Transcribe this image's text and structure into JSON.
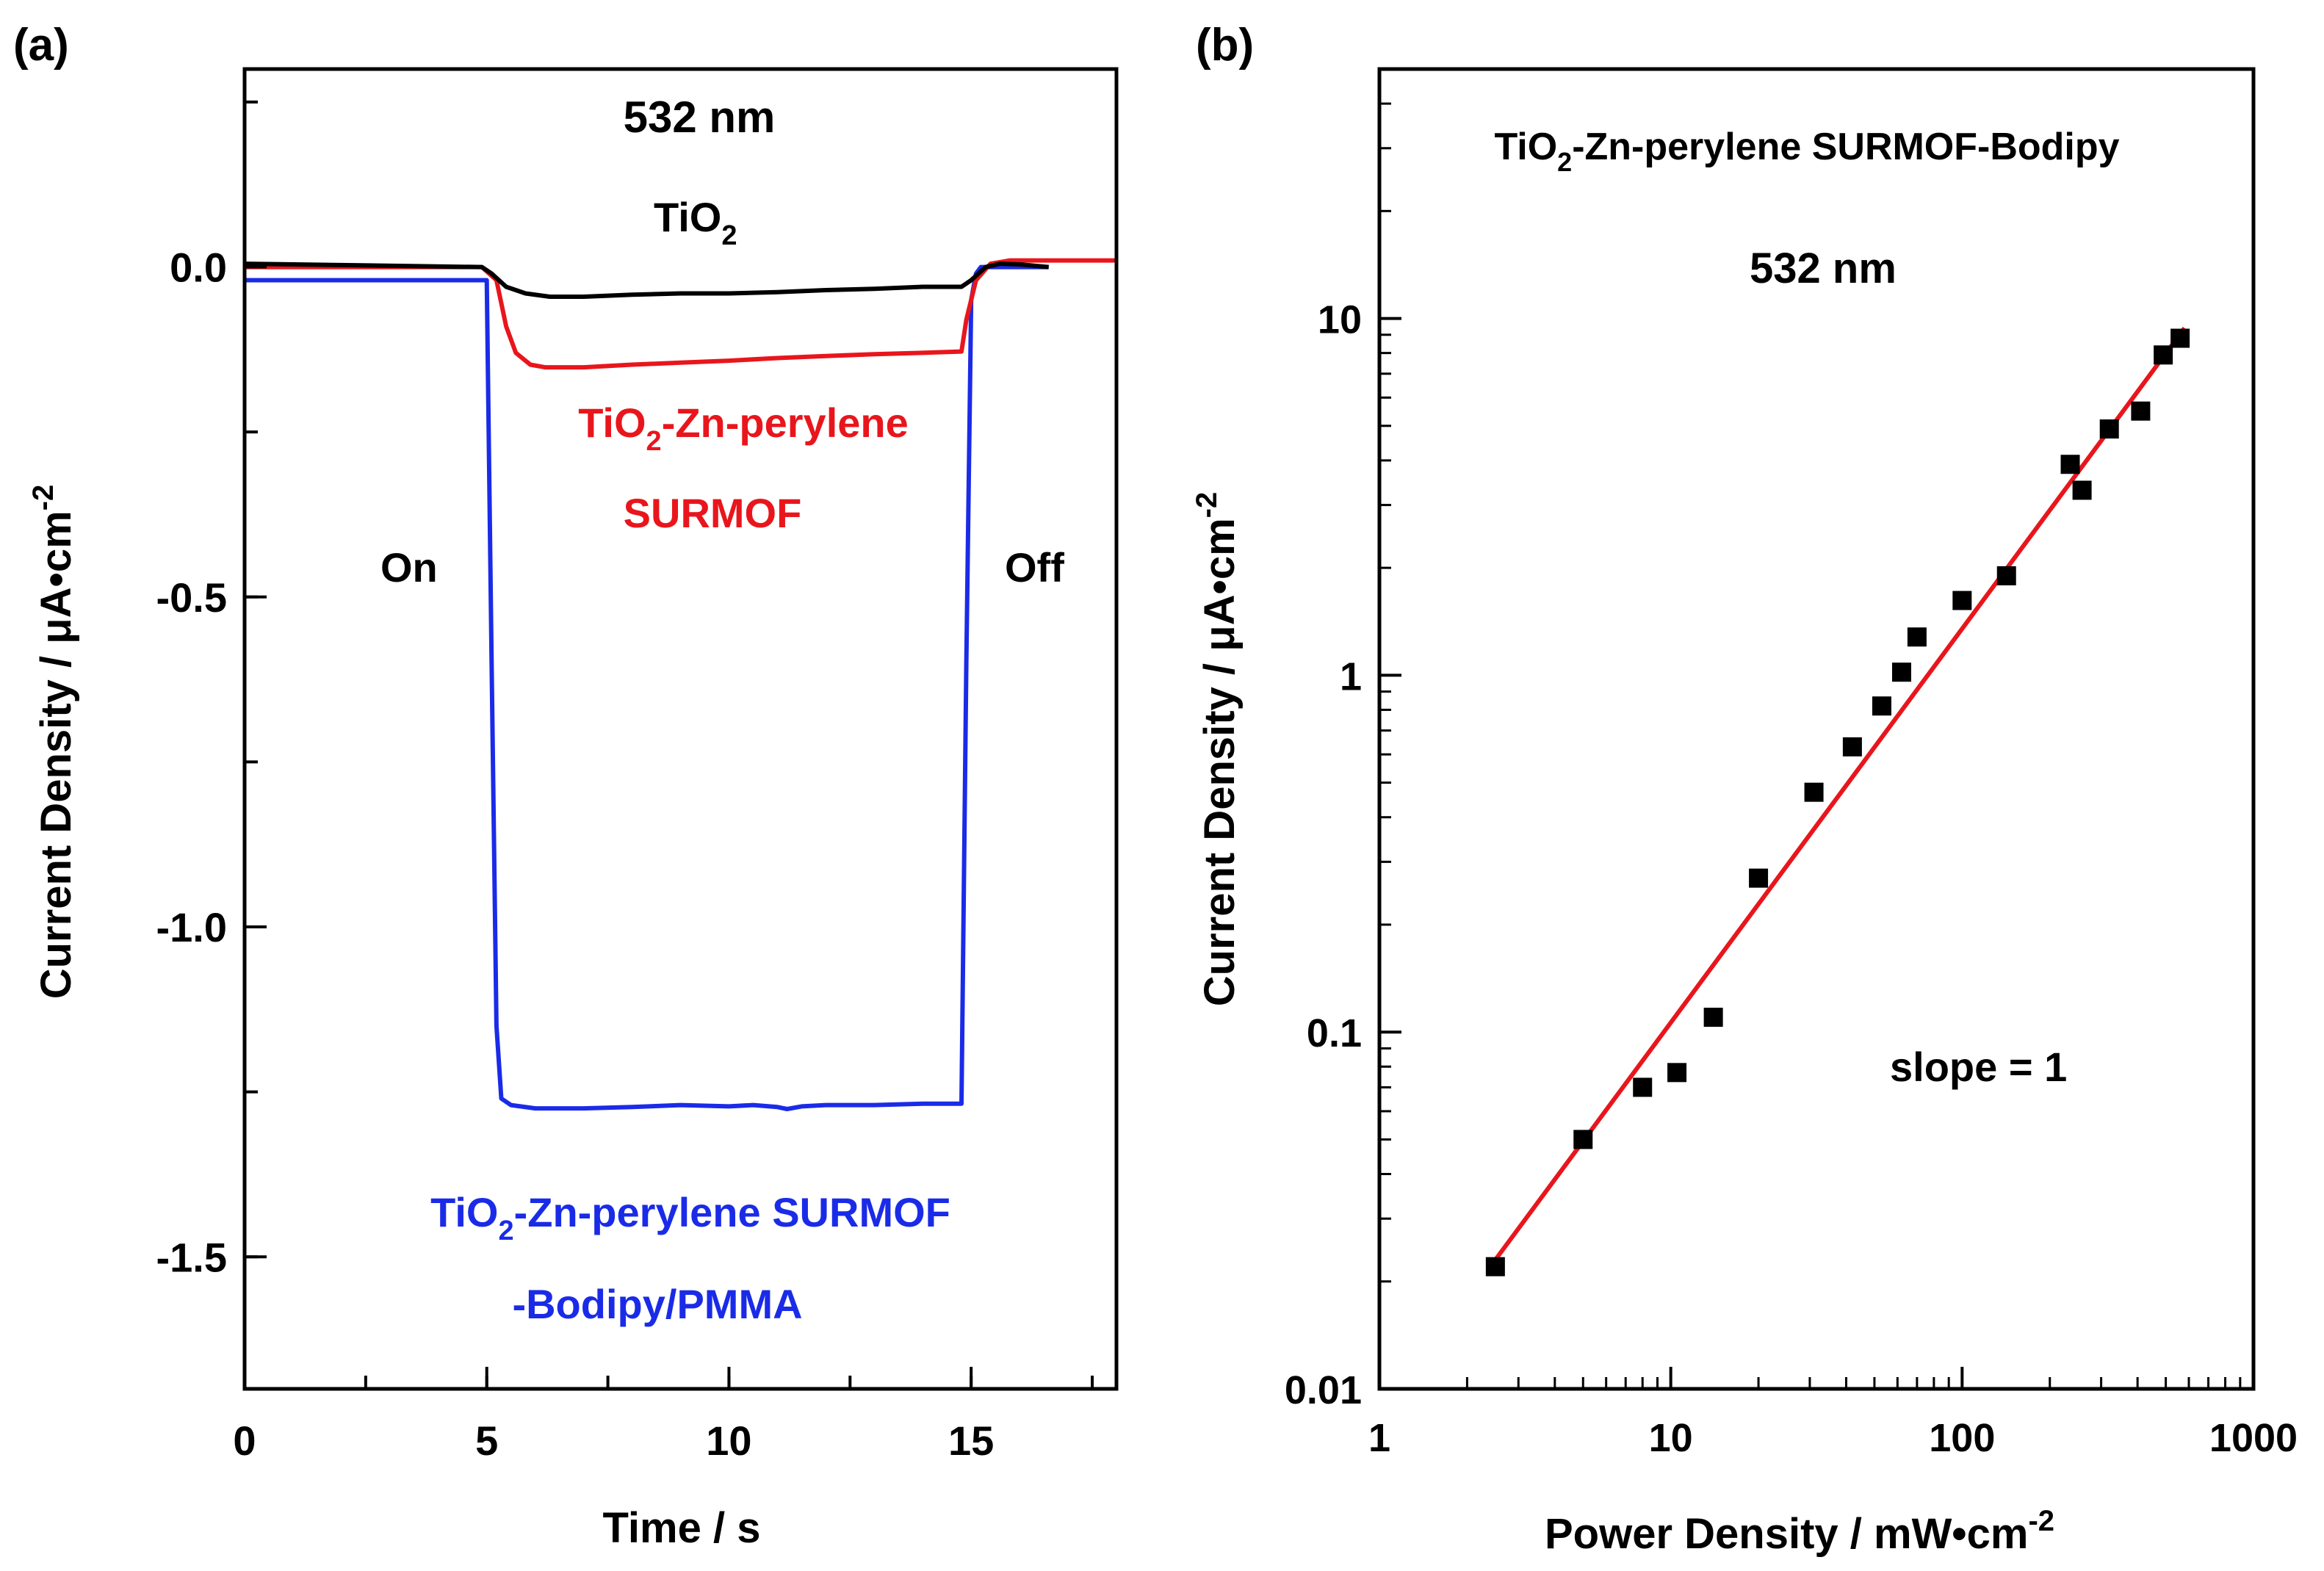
{
  "chart_data": [
    {
      "type": "line",
      "panel_label": "(a)",
      "title": "532 nm",
      "xlabel": "Time / s",
      "ylabel_main": "Current Density / ",
      "ylabel_unit": "μA•cm",
      "ylabel_exp": "-2",
      "xlim": [
        0,
        18
      ],
      "ylim": [
        -1.7,
        0.3
      ],
      "xticks": [
        0,
        5,
        10,
        15
      ],
      "xtick_labels": [
        "0",
        "5",
        "10",
        "15"
      ],
      "yticks": [
        0.0,
        -0.5,
        -1.0,
        -1.5
      ],
      "ytick_labels": [
        "0.0",
        "-0.5",
        "-1.0",
        "-1.5"
      ],
      "annotations": {
        "on": "On",
        "off": "Off"
      },
      "series": [
        {
          "name": "TiO2",
          "label_base": "TiO",
          "label_sub": "2",
          "label_rest": "",
          "color": "#000000",
          "x": [
            0,
            4.9,
            5.1,
            5.4,
            5.8,
            6.3,
            7,
            8,
            9,
            10,
            11,
            12,
            13,
            14,
            14.8,
            15.0,
            15.3,
            15.6,
            16.0,
            16.6
          ],
          "y": [
            0.005,
            0.0,
            -0.01,
            -0.03,
            -0.04,
            -0.045,
            -0.045,
            -0.042,
            -0.04,
            -0.04,
            -0.038,
            -0.035,
            -0.033,
            -0.03,
            -0.03,
            -0.02,
            0.0,
            0.005,
            0.004,
            0.0
          ]
        },
        {
          "name": "TiO2-Zn-perylene SURMOF",
          "label_line1_base": "TiO",
          "label_line1_sub": "2",
          "label_line1_rest": "-Zn-perylene",
          "label_line2": "SURMOF",
          "color": "#e8161c",
          "x": [
            0,
            4.9,
            5.2,
            5.4,
            5.6,
            5.9,
            6.2,
            7,
            8,
            9,
            10,
            11,
            12,
            13,
            14,
            14.8,
            14.9,
            15.1,
            15.4,
            15.8,
            16.5,
            18
          ],
          "y": [
            0.0,
            0.0,
            -0.02,
            -0.09,
            -0.13,
            -0.148,
            -0.152,
            -0.152,
            -0.148,
            -0.145,
            -0.142,
            -0.138,
            -0.135,
            -0.132,
            -0.13,
            -0.128,
            -0.08,
            -0.02,
            0.005,
            0.01,
            0.01,
            0.01
          ]
        },
        {
          "name": "TiO2-Zn-perylene SURMOF-Bodipy/PMMA",
          "label_line1_base": "TiO",
          "label_line1_sub": "2",
          "label_line1_rest": "-Zn-perylene SURMOF",
          "label_line2": "-Bodipy/PMMA",
          "color": "#1a2be8",
          "x": [
            0,
            5.0,
            5.1,
            5.2,
            5.3,
            5.5,
            6,
            7,
            8,
            9,
            10,
            10.5,
            11,
            11.2,
            11.5,
            12,
            13,
            14,
            14.8,
            14.9,
            15.0,
            15.1,
            15.2,
            16.6
          ],
          "y": [
            -0.02,
            -0.02,
            -0.6,
            -1.15,
            -1.26,
            -1.27,
            -1.275,
            -1.275,
            -1.273,
            -1.27,
            -1.272,
            -1.27,
            -1.273,
            -1.276,
            -1.272,
            -1.27,
            -1.27,
            -1.268,
            -1.268,
            -0.6,
            -0.05,
            -0.01,
            0.0,
            0.0
          ]
        }
      ]
    },
    {
      "type": "scatter",
      "panel_label": "(b)",
      "title_base": "TiO",
      "title_sub": "2",
      "title_rest": "-Zn-perylene SURMOF-Bodipy",
      "subtitle": "532 nm",
      "xlabel_main": "Power Density / mW•cm",
      "xlabel_exp": "-2",
      "ylabel_main": "Current Density / ",
      "ylabel_unit": "μA•cm",
      "ylabel_exp": "-2",
      "xscale": "log",
      "yscale": "log",
      "xlim": [
        1,
        1000
      ],
      "ylim": [
        0.01,
        50
      ],
      "xticks": [
        1,
        10,
        100,
        1000
      ],
      "xtick_labels": [
        "1",
        "10",
        "100",
        "1000"
      ],
      "yticks": [
        0.01,
        0.1,
        1,
        10
      ],
      "ytick_labels": [
        "0.01",
        "0.1",
        "1",
        "10"
      ],
      "annotation": "slope = 1",
      "points": {
        "color": "#000000",
        "x": [
          2.5,
          5,
          8,
          10.5,
          14,
          20,
          31,
          42,
          53,
          62,
          70,
          100,
          142,
          235,
          258,
          320,
          410,
          490,
          560
        ],
        "y": [
          0.022,
          0.05,
          0.07,
          0.077,
          0.11,
          0.27,
          0.47,
          0.63,
          0.82,
          1.02,
          1.28,
          1.62,
          1.9,
          3.9,
          3.3,
          4.9,
          5.5,
          7.9,
          8.8
        ]
      },
      "fit": {
        "name": "slope = 1",
        "color": "#e8161c",
        "x": [
          2.5,
          580
        ],
        "y": [
          0.023,
          9.4
        ]
      }
    }
  ]
}
